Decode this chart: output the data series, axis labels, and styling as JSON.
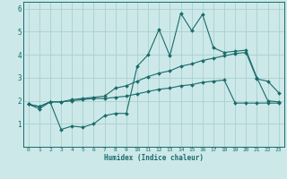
{
  "xlabel": "Humidex (Indice chaleur)",
  "ylabel": "",
  "xlim": [
    -0.5,
    23.5
  ],
  "ylim": [
    0,
    6.3
  ],
  "xticks": [
    0,
    1,
    2,
    3,
    4,
    5,
    6,
    7,
    8,
    9,
    10,
    11,
    12,
    13,
    14,
    15,
    16,
    17,
    18,
    19,
    20,
    21,
    22,
    23
  ],
  "yticks": [
    1,
    2,
    3,
    4,
    5,
    6
  ],
  "bg_color": "#cce8e8",
  "grid_color": "#aacfcf",
  "line_color": "#1a6b6b",
  "line1_x": [
    0,
    1,
    2,
    3,
    4,
    5,
    6,
    7,
    8,
    9,
    10,
    11,
    12,
    13,
    14,
    15,
    16,
    17,
    18,
    19,
    20,
    21,
    22,
    23
  ],
  "line1_y": [
    1.85,
    1.65,
    1.95,
    0.75,
    0.9,
    0.85,
    1.0,
    1.35,
    1.45,
    1.45,
    3.5,
    4.0,
    5.1,
    3.95,
    5.8,
    5.05,
    5.75,
    4.3,
    4.1,
    4.15,
    4.2,
    3.0,
    2.0,
    1.95
  ],
  "line2_x": [
    0,
    1,
    2,
    3,
    4,
    5,
    6,
    7,
    8,
    9,
    10,
    11,
    12,
    13,
    14,
    15,
    16,
    17,
    18,
    19,
    20,
    21,
    22,
    23
  ],
  "line2_y": [
    1.85,
    1.75,
    1.95,
    1.95,
    2.05,
    2.1,
    2.15,
    2.2,
    2.55,
    2.65,
    2.85,
    3.05,
    3.2,
    3.3,
    3.5,
    3.6,
    3.75,
    3.85,
    3.95,
    4.05,
    4.1,
    2.95,
    2.85,
    2.35
  ],
  "line3_x": [
    0,
    1,
    2,
    3,
    4,
    5,
    6,
    7,
    8,
    9,
    10,
    11,
    12,
    13,
    14,
    15,
    16,
    17,
    18,
    19,
    20,
    21,
    22,
    23
  ],
  "line3_y": [
    1.85,
    1.75,
    1.95,
    1.95,
    2.0,
    2.05,
    2.1,
    2.1,
    2.15,
    2.2,
    2.3,
    2.4,
    2.5,
    2.55,
    2.65,
    2.7,
    2.8,
    2.85,
    2.9,
    1.9,
    1.9,
    1.9,
    1.9,
    1.9
  ]
}
